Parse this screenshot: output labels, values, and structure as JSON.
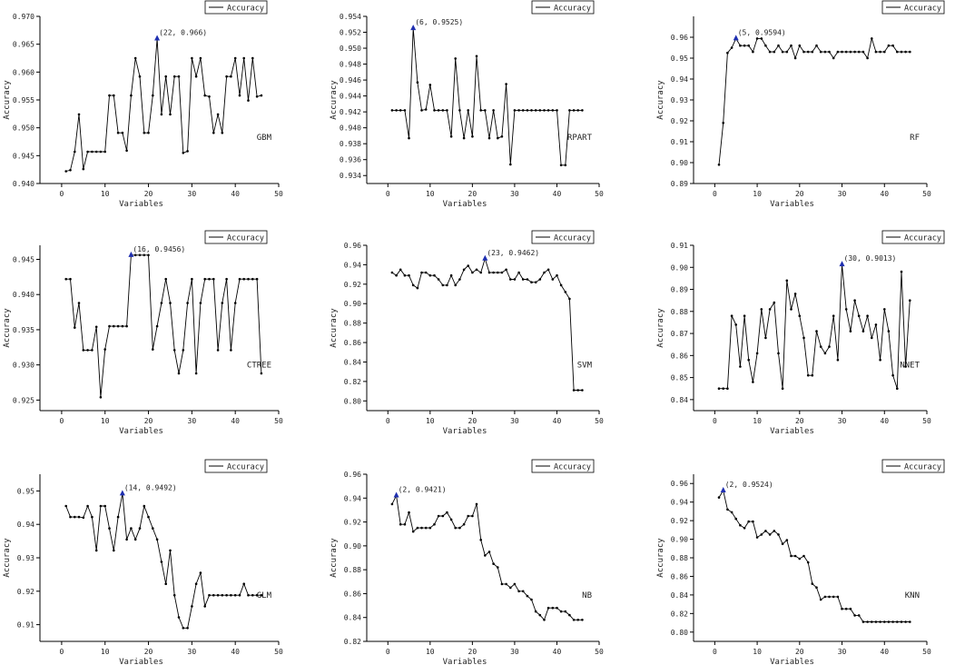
{
  "chart_data": [
    {
      "type": "line",
      "model": "GBM",
      "xlabel": "Variables",
      "ylabel": "Accuracy",
      "legend": "Accuracy",
      "xlim": [
        -5,
        50
      ],
      "ylim": [
        0.94,
        0.97
      ],
      "xticks": [
        0,
        10,
        20,
        30,
        40,
        50
      ],
      "yticks": [
        0.94,
        0.945,
        0.95,
        0.955,
        0.96,
        0.965,
        0.97
      ],
      "ydec": 3,
      "x": [
        1,
        2,
        3,
        4,
        5,
        6,
        7,
        8,
        9,
        10,
        11,
        12,
        13,
        14,
        15,
        16,
        17,
        18,
        19,
        20,
        21,
        22,
        23,
        24,
        25,
        26,
        27,
        28,
        29,
        30,
        31,
        32,
        33,
        34,
        35,
        36,
        37,
        38,
        39,
        40,
        41,
        42,
        43,
        44,
        45,
        46
      ],
      "y": [
        0.9422,
        0.9424,
        0.9457,
        0.9524,
        0.9426,
        0.9457,
        0.9457,
        0.9457,
        0.9457,
        0.9457,
        0.9558,
        0.9558,
        0.9491,
        0.9491,
        0.9459,
        0.9558,
        0.9625,
        0.9592,
        0.9491,
        0.9491,
        0.9558,
        0.966,
        0.9524,
        0.9592,
        0.9524,
        0.9592,
        0.9592,
        0.9455,
        0.9458,
        0.9625,
        0.9592,
        0.9625,
        0.9558,
        0.9556,
        0.9491,
        0.9524,
        0.9491,
        0.9592,
        0.9592,
        0.9625,
        0.9558,
        0.9625,
        0.9549,
        0.9625,
        0.9556,
        0.9558
      ],
      "highlight": {
        "x": 22,
        "y": 0.966,
        "label": "(22, 0.966)"
      }
    },
    {
      "type": "line",
      "model": "RPART",
      "xlabel": "Variables",
      "ylabel": "Accuracy",
      "legend": "Accuracy",
      "xlim": [
        -5,
        50
      ],
      "ylim": [
        0.933,
        0.954
      ],
      "xticks": [
        0,
        10,
        20,
        30,
        40,
        50
      ],
      "yticks": [
        0.934,
        0.936,
        0.938,
        0.94,
        0.942,
        0.944,
        0.946,
        0.948,
        0.95,
        0.952,
        0.954
      ],
      "ydec": 3,
      "x": [
        1,
        2,
        3,
        4,
        5,
        6,
        7,
        8,
        9,
        10,
        11,
        12,
        13,
        14,
        15,
        16,
        17,
        18,
        19,
        20,
        21,
        22,
        23,
        24,
        25,
        26,
        27,
        28,
        29,
        30,
        31,
        32,
        33,
        34,
        35,
        36,
        37,
        38,
        39,
        40,
        41,
        42,
        43,
        44,
        45,
        46
      ],
      "y": [
        0.9422,
        0.9422,
        0.9422,
        0.9422,
        0.9387,
        0.9525,
        0.9457,
        0.9422,
        0.9423,
        0.9454,
        0.9422,
        0.9422,
        0.9422,
        0.9422,
        0.9389,
        0.9487,
        0.9422,
        0.9387,
        0.9422,
        0.9389,
        0.949,
        0.9422,
        0.9422,
        0.9387,
        0.9422,
        0.9387,
        0.9389,
        0.9455,
        0.9354,
        0.9422,
        0.9422,
        0.9422,
        0.9422,
        0.9422,
        0.9422,
        0.9422,
        0.9422,
        0.9422,
        0.9422,
        0.9422,
        0.9353,
        0.9353,
        0.9422,
        0.9422,
        0.9422,
        0.9422
      ],
      "highlight": {
        "x": 6,
        "y": 0.9525,
        "label": "(6, 0.9525)"
      }
    },
    {
      "type": "line",
      "model": "RF",
      "xlabel": "Variables",
      "ylabel": "Accuracy",
      "legend": "Accuracy",
      "xlim": [
        -5,
        50
      ],
      "ylim": [
        0.89,
        0.97
      ],
      "xticks": [
        0,
        10,
        20,
        30,
        40,
        50
      ],
      "yticks": [
        0.89,
        0.9,
        0.91,
        0.92,
        0.93,
        0.94,
        0.95,
        0.96
      ],
      "ydec": 2,
      "x": [
        1,
        2,
        3,
        4,
        5,
        6,
        7,
        8,
        9,
        10,
        11,
        12,
        13,
        14,
        15,
        16,
        17,
        18,
        19,
        20,
        21,
        22,
        23,
        24,
        25,
        26,
        27,
        28,
        29,
        30,
        31,
        32,
        33,
        34,
        35,
        36,
        37,
        38,
        39,
        40,
        41,
        42,
        43,
        44,
        45,
        46
      ],
      "y": [
        0.899,
        0.919,
        0.9525,
        0.955,
        0.9594,
        0.956,
        0.956,
        0.956,
        0.953,
        0.9594,
        0.9594,
        0.956,
        0.953,
        0.953,
        0.956,
        0.953,
        0.953,
        0.956,
        0.95,
        0.956,
        0.953,
        0.953,
        0.953,
        0.956,
        0.953,
        0.953,
        0.953,
        0.95,
        0.953,
        0.953,
        0.953,
        0.953,
        0.953,
        0.953,
        0.953,
        0.95,
        0.9594,
        0.953,
        0.953,
        0.953,
        0.956,
        0.956,
        0.953,
        0.953,
        0.953,
        0.953
      ],
      "highlight": {
        "x": 5,
        "y": 0.9594,
        "label": "(5, 0.9594)"
      }
    },
    {
      "type": "line",
      "model": "CTREE",
      "xlabel": "Variables",
      "ylabel": "Accuracy",
      "legend": "Accuracy",
      "xlim": [
        -5,
        50
      ],
      "ylim": [
        0.9235,
        0.947
      ],
      "xticks": [
        0,
        10,
        20,
        30,
        40,
        50
      ],
      "yticks": [
        0.925,
        0.93,
        0.935,
        0.94,
        0.945
      ],
      "ydec": 3,
      "x": [
        1,
        2,
        3,
        4,
        5,
        6,
        7,
        8,
        9,
        10,
        11,
        12,
        13,
        14,
        15,
        16,
        17,
        18,
        19,
        20,
        21,
        22,
        23,
        24,
        25,
        26,
        27,
        28,
        29,
        30,
        31,
        32,
        33,
        34,
        35,
        36,
        37,
        38,
        39,
        40,
        41,
        42,
        43,
        44,
        45,
        46
      ],
      "y": [
        0.9422,
        0.9422,
        0.9353,
        0.9388,
        0.9321,
        0.9321,
        0.9321,
        0.9354,
        0.9254,
        0.9322,
        0.9355,
        0.9355,
        0.9355,
        0.9355,
        0.9355,
        0.9456,
        0.9456,
        0.9456,
        0.9456,
        0.9456,
        0.9322,
        0.9355,
        0.9388,
        0.9422,
        0.9388,
        0.9321,
        0.9288,
        0.9321,
        0.9388,
        0.9422,
        0.9288,
        0.9388,
        0.9422,
        0.9422,
        0.9422,
        0.9321,
        0.9388,
        0.9422,
        0.9321,
        0.9388,
        0.9422,
        0.9422,
        0.9422,
        0.9422,
        0.9422,
        0.9288
      ],
      "highlight": {
        "x": 16,
        "y": 0.9456,
        "label": "(16, 0.9456)"
      }
    },
    {
      "type": "line",
      "model": "SVM",
      "xlabel": "Variables",
      "ylabel": "Accuracy",
      "legend": "Accuracy",
      "xlim": [
        -5,
        50
      ],
      "ylim": [
        0.79,
        0.96
      ],
      "xticks": [
        0,
        10,
        20,
        30,
        40,
        50
      ],
      "yticks": [
        0.8,
        0.82,
        0.84,
        0.86,
        0.88,
        0.9,
        0.92,
        0.94,
        0.96
      ],
      "ydec": 2,
      "x": [
        1,
        2,
        3,
        4,
        5,
        6,
        7,
        8,
        9,
        10,
        11,
        12,
        13,
        14,
        15,
        16,
        17,
        18,
        19,
        20,
        21,
        22,
        23,
        24,
        25,
        26,
        27,
        28,
        29,
        30,
        31,
        32,
        33,
        34,
        35,
        36,
        37,
        38,
        39,
        40,
        41,
        42,
        43,
        44,
        45,
        46
      ],
      "y": [
        0.932,
        0.929,
        0.935,
        0.929,
        0.929,
        0.919,
        0.916,
        0.932,
        0.932,
        0.929,
        0.929,
        0.925,
        0.919,
        0.919,
        0.929,
        0.919,
        0.925,
        0.935,
        0.939,
        0.932,
        0.935,
        0.932,
        0.9462,
        0.932,
        0.932,
        0.932,
        0.932,
        0.935,
        0.925,
        0.925,
        0.932,
        0.925,
        0.925,
        0.922,
        0.922,
        0.925,
        0.932,
        0.935,
        0.925,
        0.929,
        0.919,
        0.912,
        0.905,
        0.811,
        0.811,
        0.811
      ],
      "highlight": {
        "x": 23,
        "y": 0.9462,
        "label": "(23, 0.9462)"
      }
    },
    {
      "type": "line",
      "model": "NNET",
      "xlabel": "Variables",
      "ylabel": "Accuracy",
      "legend": "Accuracy",
      "xlim": [
        -5,
        50
      ],
      "ylim": [
        0.835,
        0.91
      ],
      "xticks": [
        0,
        10,
        20,
        30,
        40,
        50
      ],
      "yticks": [
        0.84,
        0.85,
        0.86,
        0.87,
        0.88,
        0.89,
        0.9,
        0.91
      ],
      "ydec": 2,
      "x": [
        1,
        2,
        3,
        4,
        5,
        6,
        7,
        8,
        9,
        10,
        11,
        12,
        13,
        14,
        15,
        16,
        17,
        18,
        19,
        20,
        21,
        22,
        23,
        24,
        25,
        26,
        27,
        28,
        29,
        30,
        31,
        32,
        33,
        34,
        35,
        36,
        37,
        38,
        39,
        40,
        41,
        42,
        43,
        44,
        45,
        46
      ],
      "y": [
        0.845,
        0.845,
        0.845,
        0.878,
        0.874,
        0.855,
        0.878,
        0.858,
        0.848,
        0.861,
        0.881,
        0.868,
        0.881,
        0.884,
        0.861,
        0.845,
        0.894,
        0.881,
        0.888,
        0.878,
        0.868,
        0.851,
        0.851,
        0.871,
        0.864,
        0.861,
        0.864,
        0.878,
        0.858,
        0.9013,
        0.881,
        0.871,
        0.885,
        0.878,
        0.871,
        0.878,
        0.868,
        0.874,
        0.858,
        0.881,
        0.871,
        0.851,
        0.845,
        0.898,
        0.855,
        0.885
      ],
      "highlight": {
        "x": 30,
        "y": 0.9013,
        "label": "(30, 0.9013)"
      }
    },
    {
      "type": "line",
      "model": "GLM",
      "xlabel": "Variables",
      "ylabel": "Accuracy",
      "legend": "Accuracy",
      "xlim": [
        -5,
        50
      ],
      "ylim": [
        0.905,
        0.955
      ],
      "xticks": [
        0,
        10,
        20,
        30,
        40,
        50
      ],
      "yticks": [
        0.91,
        0.92,
        0.93,
        0.94,
        0.95
      ],
      "ydec": 2,
      "x": [
        1,
        2,
        3,
        4,
        5,
        6,
        7,
        8,
        9,
        10,
        11,
        12,
        13,
        14,
        15,
        16,
        17,
        18,
        19,
        20,
        21,
        22,
        23,
        24,
        25,
        26,
        27,
        28,
        29,
        30,
        31,
        32,
        33,
        34,
        35,
        36,
        37,
        38,
        39,
        40,
        41,
        42,
        43,
        44,
        45,
        46
      ],
      "y": [
        0.9455,
        0.9422,
        0.9422,
        0.9422,
        0.942,
        0.9455,
        0.9422,
        0.9322,
        0.9455,
        0.9455,
        0.9388,
        0.9322,
        0.9422,
        0.9492,
        0.9355,
        0.9388,
        0.9355,
        0.9388,
        0.9455,
        0.9422,
        0.9388,
        0.9355,
        0.9288,
        0.9222,
        0.9322,
        0.9188,
        0.9122,
        0.909,
        0.909,
        0.9155,
        0.9222,
        0.9255,
        0.9155,
        0.9188,
        0.9188,
        0.9188,
        0.9188,
        0.9188,
        0.9188,
        0.9188,
        0.9188,
        0.9222,
        0.9188,
        0.9188,
        0.9188,
        0.9188
      ],
      "highlight": {
        "x": 14,
        "y": 0.9492,
        "label": "(14, 0.9492)"
      }
    },
    {
      "type": "line",
      "model": "NB",
      "xlabel": "Variables",
      "ylabel": "Accuracy",
      "legend": "Accuracy",
      "xlim": [
        -5,
        50
      ],
      "ylim": [
        0.82,
        0.96
      ],
      "xticks": [
        0,
        10,
        20,
        30,
        40,
        50
      ],
      "yticks": [
        0.82,
        0.84,
        0.86,
        0.88,
        0.9,
        0.92,
        0.94,
        0.96
      ],
      "ydec": 2,
      "x": [
        1,
        2,
        3,
        4,
        5,
        6,
        7,
        8,
        9,
        10,
        11,
        12,
        13,
        14,
        15,
        16,
        17,
        18,
        19,
        20,
        21,
        22,
        23,
        24,
        25,
        26,
        27,
        28,
        29,
        30,
        31,
        32,
        33,
        34,
        35,
        36,
        37,
        38,
        39,
        40,
        41,
        42,
        43,
        44,
        45,
        46
      ],
      "y": [
        0.935,
        0.9421,
        0.918,
        0.918,
        0.928,
        0.912,
        0.915,
        0.915,
        0.915,
        0.915,
        0.918,
        0.925,
        0.925,
        0.928,
        0.922,
        0.915,
        0.915,
        0.918,
        0.925,
        0.925,
        0.935,
        0.905,
        0.892,
        0.895,
        0.885,
        0.882,
        0.868,
        0.868,
        0.865,
        0.868,
        0.862,
        0.862,
        0.858,
        0.855,
        0.845,
        0.842,
        0.838,
        0.848,
        0.848,
        0.848,
        0.845,
        0.845,
        0.842,
        0.838,
        0.838,
        0.838
      ],
      "highlight": {
        "x": 2,
        "y": 0.9421,
        "label": "(2, 0.9421)"
      }
    },
    {
      "type": "line",
      "model": "KNN",
      "xlabel": "Variables",
      "ylabel": "Accuracy",
      "legend": "Accuracy",
      "xlim": [
        -5,
        50
      ],
      "ylim": [
        0.79,
        0.97
      ],
      "xticks": [
        0,
        10,
        20,
        30,
        40,
        50
      ],
      "yticks": [
        0.8,
        0.82,
        0.84,
        0.86,
        0.88,
        0.9,
        0.92,
        0.94,
        0.96
      ],
      "ydec": 2,
      "x": [
        1,
        2,
        3,
        4,
        5,
        6,
        7,
        8,
        9,
        10,
        11,
        12,
        13,
        14,
        15,
        16,
        17,
        18,
        19,
        20,
        21,
        22,
        23,
        24,
        25,
        26,
        27,
        28,
        29,
        30,
        31,
        32,
        33,
        34,
        35,
        36,
        37,
        38,
        39,
        40,
        41,
        42,
        43,
        44,
        45,
        46
      ],
      "y": [
        0.945,
        0.9524,
        0.932,
        0.929,
        0.922,
        0.915,
        0.912,
        0.919,
        0.919,
        0.902,
        0.905,
        0.909,
        0.905,
        0.909,
        0.905,
        0.895,
        0.899,
        0.882,
        0.882,
        0.879,
        0.882,
        0.875,
        0.852,
        0.848,
        0.835,
        0.838,
        0.838,
        0.838,
        0.838,
        0.825,
        0.825,
        0.825,
        0.818,
        0.818,
        0.811,
        0.811,
        0.811,
        0.811,
        0.811,
        0.811,
        0.811,
        0.811,
        0.811,
        0.811,
        0.811,
        0.811
      ],
      "highlight": {
        "x": 2,
        "y": 0.9524,
        "label": "(2, 0.9524)"
      }
    }
  ]
}
